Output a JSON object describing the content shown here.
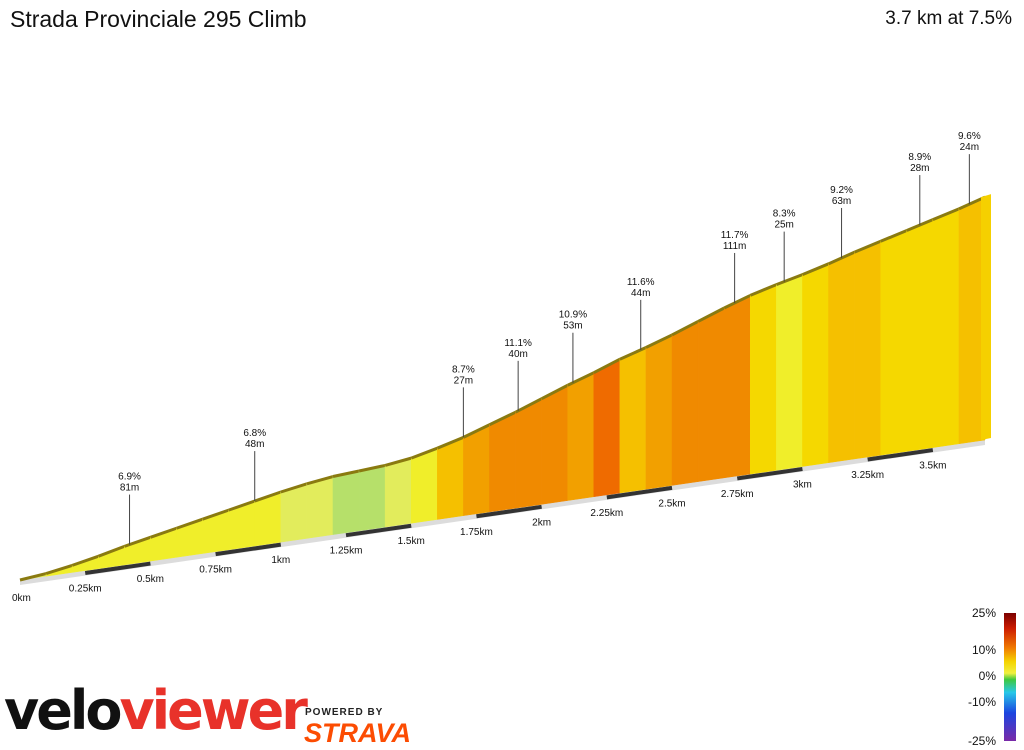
{
  "header": {
    "title": "Strada Provinciale 295 Climb",
    "summary": "3.7 km at 7.5%"
  },
  "branding": {
    "velo": "velo",
    "viewer": "viewer",
    "powered_by": "POWERED BY",
    "strava": "STRAVA"
  },
  "chart_data": {
    "type": "area",
    "title": "Strada Provinciale 295 Climb",
    "total_distance_km": 3.7,
    "x_ticks": [
      "0km",
      "0.25km",
      "0.5km",
      "0.75km",
      "1km",
      "1.25km",
      "1.5km",
      "1.75km",
      "2km",
      "2.25km",
      "2.5km",
      "2.75km",
      "3km",
      "3.25km",
      "3.5km"
    ],
    "segments": [
      {
        "x": 0.0,
        "elev": 0
      },
      {
        "x": 0.1,
        "elev": 3
      },
      {
        "x": 0.2,
        "elev": 8
      },
      {
        "x": 0.3,
        "elev": 14
      },
      {
        "x": 0.4,
        "elev": 21
      },
      {
        "x": 0.5,
        "elev": 27
      },
      {
        "x": 0.6,
        "elev": 33
      },
      {
        "x": 0.7,
        "elev": 39
      },
      {
        "x": 0.8,
        "elev": 45
      },
      {
        "x": 0.9,
        "elev": 51
      },
      {
        "x": 1.0,
        "elev": 57
      },
      {
        "x": 1.1,
        "elev": 62
      },
      {
        "x": 1.2,
        "elev": 66
      },
      {
        "x": 1.3,
        "elev": 68
      },
      {
        "x": 1.4,
        "elev": 70
      },
      {
        "x": 1.5,
        "elev": 74
      },
      {
        "x": 1.6,
        "elev": 81
      },
      {
        "x": 1.7,
        "elev": 89
      },
      {
        "x": 1.8,
        "elev": 99
      },
      {
        "x": 1.9,
        "elev": 109
      },
      {
        "x": 2.0,
        "elev": 120
      },
      {
        "x": 2.1,
        "elev": 131
      },
      {
        "x": 2.2,
        "elev": 141
      },
      {
        "x": 2.3,
        "elev": 152
      },
      {
        "x": 2.4,
        "elev": 161
      },
      {
        "x": 2.5,
        "elev": 171
      },
      {
        "x": 2.6,
        "elev": 182
      },
      {
        "x": 2.7,
        "elev": 193
      },
      {
        "x": 2.8,
        "elev": 203
      },
      {
        "x": 2.9,
        "elev": 211
      },
      {
        "x": 3.0,
        "elev": 218
      },
      {
        "x": 3.1,
        "elev": 226
      },
      {
        "x": 3.2,
        "elev": 235
      },
      {
        "x": 3.3,
        "elev": 243
      },
      {
        "x": 3.4,
        "elev": 251
      },
      {
        "x": 3.5,
        "elev": 259
      },
      {
        "x": 3.6,
        "elev": 267
      },
      {
        "x": 3.7,
        "elev": 276
      }
    ],
    "annotations": [
      {
        "x": 0.42,
        "grade": "6.9%",
        "length": "81m"
      },
      {
        "x": 0.9,
        "grade": "6.8%",
        "length": "48m"
      },
      {
        "x": 1.7,
        "grade": "8.7%",
        "length": "27m"
      },
      {
        "x": 1.91,
        "grade": "11.1%",
        "length": "40m"
      },
      {
        "x": 2.12,
        "grade": "10.9%",
        "length": "53m"
      },
      {
        "x": 2.38,
        "grade": "11.6%",
        "length": "44m"
      },
      {
        "x": 2.74,
        "grade": "11.7%",
        "length": "111m"
      },
      {
        "x": 2.93,
        "grade": "8.3%",
        "length": "25m"
      },
      {
        "x": 3.15,
        "grade": "9.2%",
        "length": "63m"
      },
      {
        "x": 3.45,
        "grade": "8.9%",
        "length": "28m"
      },
      {
        "x": 3.64,
        "grade": "9.6%",
        "length": "24m"
      }
    ],
    "legend": {
      "labels": [
        "25%",
        "10%",
        "0%",
        "-10%",
        "-25%"
      ],
      "placement": "bottom-right"
    }
  }
}
